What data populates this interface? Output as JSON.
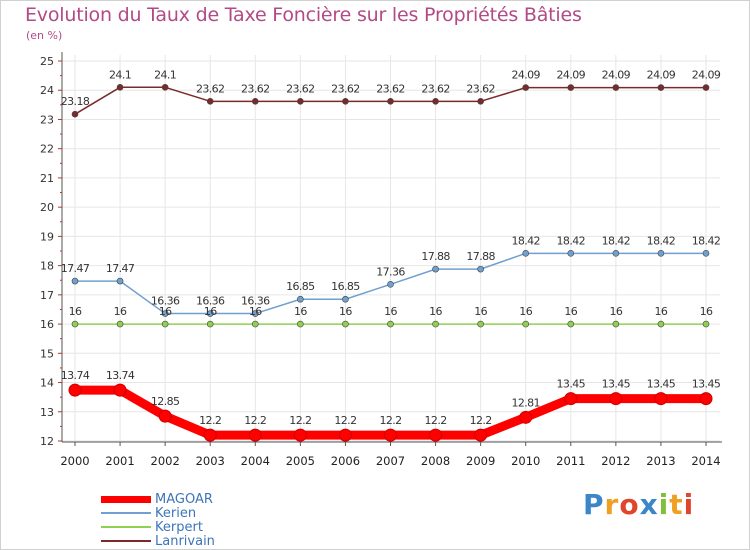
{
  "title": "Evolution du Taux de Taxe Foncière sur les Propriétés Bâties",
  "subtitle": "(en %)",
  "logo": {
    "letters": [
      "P",
      "r",
      "o",
      "x",
      "i",
      "t",
      "i"
    ],
    "colors": [
      "#3a86c8",
      "#f0a020",
      "#e0462e",
      "#3a86c8",
      "#7fbf3a",
      "#f0a020",
      "#e0462e"
    ]
  },
  "chart_data": {
    "type": "line",
    "title": "Evolution du Taux de Taxe Foncière sur les Propriétés Bâties",
    "ylabel": "(en %)",
    "ylim": [
      12,
      25
    ],
    "yticks": [
      12,
      13,
      14,
      15,
      16,
      17,
      18,
      19,
      20,
      21,
      22,
      23,
      24,
      25
    ],
    "categories": [
      "2000",
      "2001",
      "2002",
      "2003",
      "2004",
      "2005",
      "2006",
      "2007",
      "2008",
      "2009",
      "2010",
      "2011",
      "2012",
      "2013",
      "2014"
    ],
    "series": [
      {
        "name": "MAGOAR",
        "color": "#ff0000",
        "width": 9,
        "values": [
          13.74,
          13.74,
          12.85,
          12.2,
          12.2,
          12.2,
          12.2,
          12.2,
          12.2,
          12.2,
          12.81,
          13.45,
          13.45,
          13.45,
          13.45
        ],
        "labels": [
          "13.74",
          "13.74",
          "12.85",
          "12.2",
          "12.2",
          "12.2",
          "12.2",
          "12.2",
          "12.2",
          "12.2",
          "12.81",
          "13.45",
          "13.45",
          "13.45",
          "13.45"
        ]
      },
      {
        "name": "Kerien",
        "color": "#6fa0d0",
        "width": 1.5,
        "values": [
          17.47,
          17.47,
          16.36,
          16.36,
          16.36,
          16.85,
          16.85,
          17.36,
          17.88,
          17.88,
          18.42,
          18.42,
          18.42,
          18.42,
          18.42
        ],
        "labels": [
          "17.47",
          "17.47",
          "16.36",
          "16.36",
          "16.36",
          "16.85",
          "16.85",
          "17.36",
          "17.88",
          "17.88",
          "18.42",
          "18.42",
          "18.42",
          "18.42",
          "18.42"
        ]
      },
      {
        "name": "Kerpert",
        "color": "#90d050",
        "width": 1.5,
        "values": [
          16,
          16,
          16,
          16,
          16,
          16,
          16,
          16,
          16,
          16,
          16,
          16,
          16,
          16,
          16
        ],
        "labels": [
          "16",
          "16",
          "16",
          "16",
          "16",
          "16",
          "16",
          "16",
          "16",
          "16",
          "16",
          "16",
          "16",
          "16",
          "16"
        ]
      },
      {
        "name": "Lanrivain",
        "color": "#7a2a2a",
        "width": 1.5,
        "values": [
          23.18,
          24.1,
          24.1,
          23.62,
          23.62,
          23.62,
          23.62,
          23.62,
          23.62,
          23.62,
          24.09,
          24.09,
          24.09,
          24.09,
          24.09
        ],
        "labels": [
          "23.18",
          "24.1",
          "24.1",
          "23.62",
          "23.62",
          "23.62",
          "23.62",
          "23.62",
          "23.62",
          "23.62",
          "24.09",
          "24.09",
          "24.09",
          "24.09",
          "24.09"
        ]
      }
    ]
  }
}
